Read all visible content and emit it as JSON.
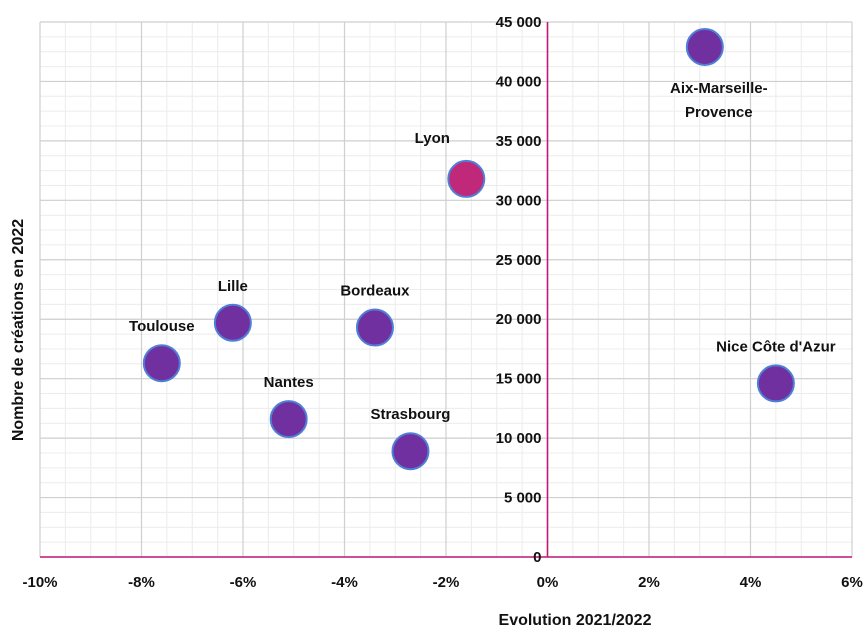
{
  "chart_data": {
    "type": "scatter",
    "xlabel": "Evolution 2021/2022",
    "ylabel": "Nombre de créations en 2022",
    "xlim": [
      -10,
      6
    ],
    "ylim": [
      0,
      45000
    ],
    "x_ticks": [
      -10,
      -8,
      -6,
      -4,
      -2,
      0,
      2,
      4,
      6
    ],
    "x_tick_labels": [
      "-10%",
      "-8%",
      "-6%",
      "-4%",
      "-2%",
      "0%",
      "2%",
      "4%",
      "6%"
    ],
    "y_ticks": [
      0,
      5000,
      10000,
      15000,
      20000,
      25000,
      30000,
      35000,
      40000,
      45000
    ],
    "y_tick_labels": [
      "0",
      "5 000",
      "10 000",
      "15 000",
      "20 000",
      "25 000",
      "30 000",
      "35 000",
      "40 000",
      "45 000"
    ],
    "grid": true,
    "points": [
      {
        "label": "Aix-Marseille-\nProvence",
        "x": 3.1,
        "y": 42900,
        "color": "#7030a0",
        "label_pos": "below"
      },
      {
        "label": "Lyon",
        "x": -1.6,
        "y": 31800,
        "color": "#c0287a",
        "label_pos": "above-left"
      },
      {
        "label": "Bordeaux",
        "x": -3.4,
        "y": 19300,
        "color": "#7030a0",
        "label_pos": "above"
      },
      {
        "label": "Lille",
        "x": -6.2,
        "y": 19700,
        "color": "#7030a0",
        "label_pos": "above"
      },
      {
        "label": "Toulouse",
        "x": -7.6,
        "y": 16300,
        "color": "#7030a0",
        "label_pos": "above"
      },
      {
        "label": "Nantes",
        "x": -5.1,
        "y": 11600,
        "color": "#7030a0",
        "label_pos": "above"
      },
      {
        "label": "Strasbourg",
        "x": -2.7,
        "y": 8900,
        "color": "#7030a0",
        "label_pos": "above"
      },
      {
        "label": "Nice Côte d'Azur",
        "x": 4.5,
        "y": 14600,
        "color": "#7030a0",
        "label_pos": "above"
      }
    ],
    "colors": {
      "axis": "#c2187a",
      "major_grid": "#cfcfcf",
      "minor_grid": "#ececec",
      "bubble_outline": "#4f7fd6"
    }
  }
}
